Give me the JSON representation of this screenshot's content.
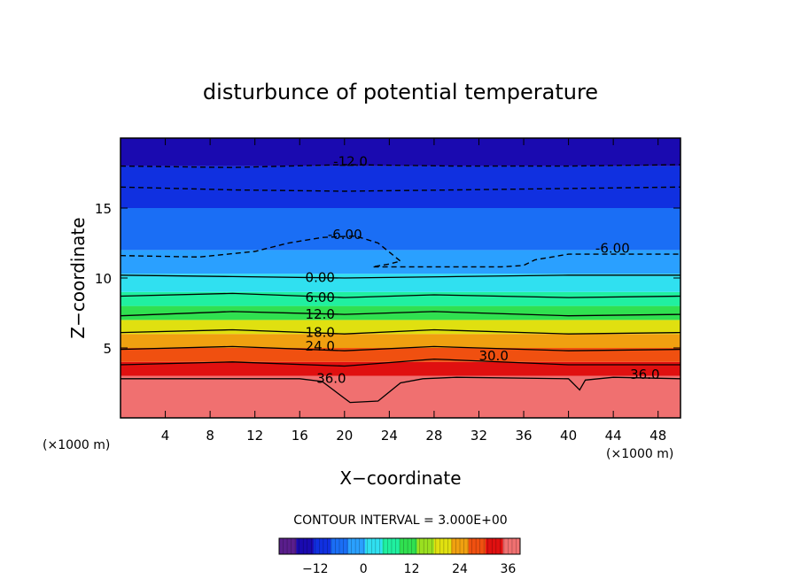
{
  "chart_data": {
    "type": "heatmap",
    "title": "disturbunce of potential temperature",
    "xlabel": "X−coordinate",
    "ylabel": "Z−coordinate",
    "x_unit": "(×1000 m)",
    "x_unit_right": "(×1000 m)",
    "xlim": [
      0,
      50
    ],
    "ylim": [
      0,
      20
    ],
    "x_ticks": [
      "4",
      "8",
      "12",
      "16",
      "20",
      "24",
      "28",
      "32",
      "36",
      "40",
      "44",
      "48"
    ],
    "x_tick_values": [
      4,
      8,
      12,
      16,
      20,
      24,
      28,
      32,
      36,
      40,
      44,
      48
    ],
    "y_ticks": [
      "5",
      "10",
      "15"
    ],
    "y_tick_values": [
      5,
      10,
      15
    ],
    "contour_interval_label": "CONTOUR INTERVAL = 3.000E+00",
    "colorbar": {
      "range": [
        -21,
        39
      ],
      "ticks": [
        "−12",
        "0",
        "12",
        "24",
        "36"
      ],
      "tick_values": [
        -12,
        0,
        12,
        24,
        36
      ],
      "colors": [
        "#5a1e8c",
        "#1a0ab0",
        "#1030e0",
        "#1a6ef5",
        "#2aa0ff",
        "#30e0f0",
        "#20f0a0",
        "#30e050",
        "#9ae020",
        "#e0e010",
        "#f0a010",
        "#f05010",
        "#e01010",
        "#f07070"
      ]
    },
    "field": [
      {
        "z": [
          0,
          3.0
        ],
        "value": 38
      },
      {
        "z": [
          3.0,
          4.0
        ],
        "value": 33
      },
      {
        "z": [
          4.0,
          5.0
        ],
        "value": 27
      },
      {
        "z": [
          5.0,
          6.0
        ],
        "value": 22
      },
      {
        "z": [
          6.0,
          7.0
        ],
        "value": 18
      },
      {
        "z": [
          7.0,
          8.0
        ],
        "value": 13
      },
      {
        "z": [
          8.0,
          9.0
        ],
        "value": 8
      },
      {
        "z": [
          9.0,
          10.3
        ],
        "value": 3
      },
      {
        "z": [
          10.3,
          12.0
        ],
        "value": -3
      },
      {
        "z": [
          12.0,
          15.0
        ],
        "value": -7
      },
      {
        "z": [
          15.0,
          18.0
        ],
        "value": -10
      },
      {
        "z": [
          18.0,
          20.0
        ],
        "value": -14
      }
    ],
    "contours": [
      {
        "level": "0.00",
        "points": [
          [
            0,
            10.2
          ],
          [
            10,
            10.1
          ],
          [
            20,
            10.0
          ],
          [
            30,
            10.1
          ],
          [
            40,
            10.2
          ],
          [
            50,
            10.2
          ]
        ],
        "dashed": false,
        "label_at": [
          16.5,
          9.7
        ]
      },
      {
        "level": "6.00",
        "points": [
          [
            0,
            8.7
          ],
          [
            10,
            8.9
          ],
          [
            20,
            8.6
          ],
          [
            28,
            8.8
          ],
          [
            40,
            8.6
          ],
          [
            50,
            8.7
          ]
        ],
        "dashed": false,
        "label_at": [
          16.5,
          8.3
        ]
      },
      {
        "level": "12.0",
        "points": [
          [
            0,
            7.3
          ],
          [
            10,
            7.6
          ],
          [
            20,
            7.4
          ],
          [
            28,
            7.6
          ],
          [
            40,
            7.3
          ],
          [
            50,
            7.4
          ]
        ],
        "dashed": false,
        "label_at": [
          16.5,
          7.1
        ]
      },
      {
        "level": "18.0",
        "points": [
          [
            0,
            6.1
          ],
          [
            10,
            6.3
          ],
          [
            20,
            6.0
          ],
          [
            28,
            6.3
          ],
          [
            40,
            6.0
          ],
          [
            50,
            6.1
          ]
        ],
        "dashed": false,
        "label_at": [
          16.5,
          5.8
        ]
      },
      {
        "level": "24.0",
        "points": [
          [
            0,
            4.9
          ],
          [
            10,
            5.1
          ],
          [
            20,
            4.8
          ],
          [
            28,
            5.1
          ],
          [
            40,
            4.8
          ],
          [
            50,
            4.9
          ]
        ],
        "dashed": false,
        "label_at": [
          16.5,
          4.8
        ]
      },
      {
        "level": "30.0",
        "points": [
          [
            0,
            3.8
          ],
          [
            10,
            4.0
          ],
          [
            20,
            3.7
          ],
          [
            28,
            4.2
          ],
          [
            40,
            3.8
          ],
          [
            50,
            3.8
          ]
        ],
        "dashed": false,
        "label_at": [
          32.0,
          4.1
        ]
      },
      {
        "level": "36.0",
        "points": [
          [
            0,
            2.8
          ],
          [
            10,
            2.8
          ],
          [
            16,
            2.8
          ],
          [
            18,
            2.6
          ],
          [
            19,
            2.0
          ],
          [
            20.5,
            1.1
          ],
          [
            23,
            1.2
          ],
          [
            25,
            2.5
          ],
          [
            27,
            2.8
          ],
          [
            30,
            2.9
          ],
          [
            40,
            2.8
          ],
          [
            41,
            2.0
          ],
          [
            41.5,
            2.7
          ],
          [
            44,
            2.9
          ],
          [
            50,
            2.8
          ]
        ],
        "dashed": false,
        "label_at": [
          17.5,
          2.5
        ]
      },
      {
        "level": "-6.00",
        "points": [
          [
            0,
            11.6
          ],
          [
            7,
            11.5
          ],
          [
            12,
            11.9
          ],
          [
            15,
            12.5
          ],
          [
            18,
            12.9
          ],
          [
            21,
            13.0
          ],
          [
            23,
            12.5
          ],
          [
            25,
            11.2
          ],
          [
            24,
            11.0
          ],
          [
            22.5,
            10.8
          ],
          [
            28,
            10.8
          ],
          [
            34,
            10.8
          ],
          [
            36,
            10.9
          ],
          [
            37,
            11.3
          ],
          [
            40,
            11.7
          ],
          [
            45,
            11.7
          ],
          [
            50,
            11.7
          ]
        ],
        "dashed": true,
        "label_at": [
          18.5,
          12.8
        ]
      },
      {
        "level": "-12.0",
        "points": [
          [
            0,
            18.0
          ],
          [
            10,
            17.9
          ],
          [
            20,
            18.1
          ],
          [
            30,
            18.0
          ],
          [
            40,
            18.0
          ],
          [
            50,
            18.1
          ]
        ],
        "dashed": true,
        "label_at": [
          19.0,
          18.0
        ]
      },
      {
        "level": "",
        "points": [
          [
            0,
            16.5
          ],
          [
            10,
            16.3
          ],
          [
            20,
            16.2
          ],
          [
            30,
            16.3
          ],
          [
            40,
            16.4
          ],
          [
            50,
            16.5
          ]
        ],
        "dashed": true,
        "label_at": null
      }
    ],
    "extra_labels": [
      {
        "text": "-6.00",
        "at": [
          42.4,
          11.8
        ]
      },
      {
        "text": "36.0",
        "at": [
          45.5,
          2.8
        ]
      }
    ]
  }
}
